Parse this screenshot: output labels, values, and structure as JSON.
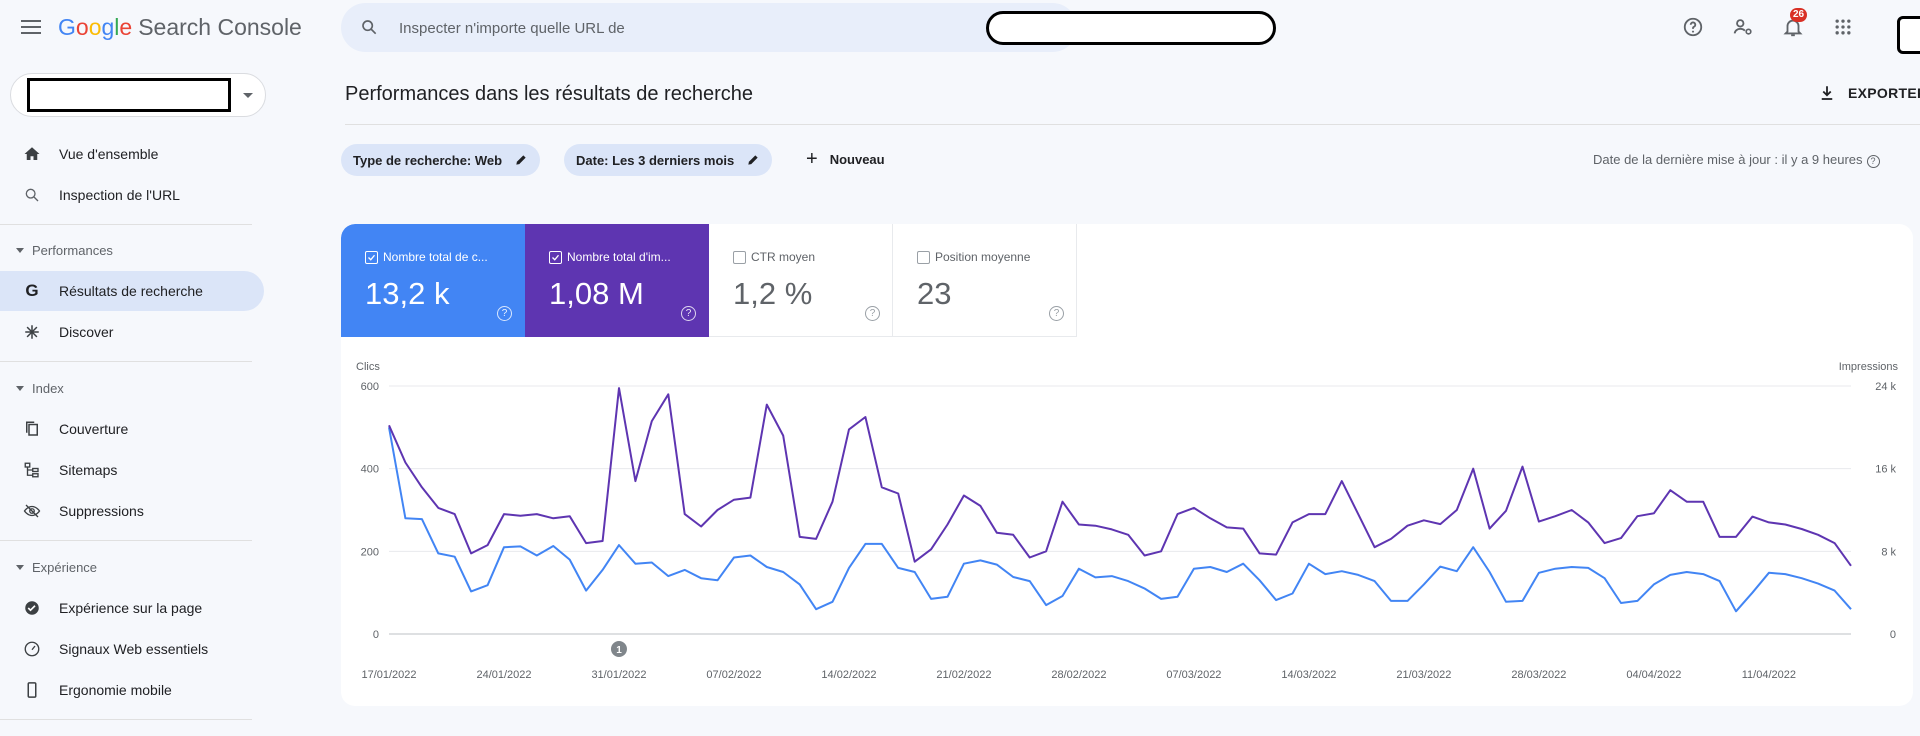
{
  "header": {
    "logo": {
      "g1": "G",
      "o1": "o",
      "o2": "o",
      "g2": "g",
      "l": "l",
      "e": "e",
      "product": "Search Console"
    },
    "search_placeholder": "Inspecter n'importe quelle URL de",
    "notifications_count": "26",
    "icons": [
      "menu-icon",
      "search-icon",
      "help-icon",
      "manage-users-icon",
      "notifications-icon",
      "apps-grid-icon"
    ]
  },
  "sidebar": {
    "top_items": [
      {
        "label": "Vue d'ensemble",
        "icon": "home-icon"
      },
      {
        "label": "Inspection de l'URL",
        "icon": "search-icon"
      }
    ],
    "sections": [
      {
        "title": "Performances",
        "items": [
          {
            "label": "Résultats de recherche",
            "icon": "google-g-icon",
            "active": true
          },
          {
            "label": "Discover",
            "icon": "discover-asterisk-icon"
          }
        ]
      },
      {
        "title": "Index",
        "items": [
          {
            "label": "Couverture",
            "icon": "coverage-copy-icon"
          },
          {
            "label": "Sitemaps",
            "icon": "sitemap-icon"
          },
          {
            "label": "Suppressions",
            "icon": "removals-eye-off-icon"
          }
        ]
      },
      {
        "title": "Expérience",
        "items": [
          {
            "label": "Expérience sur la page",
            "icon": "page-experience-icon"
          },
          {
            "label": "Signaux Web essentiels",
            "icon": "gauge-icon"
          },
          {
            "label": "Ergonomie mobile",
            "icon": "mobile-phone-icon"
          }
        ]
      }
    ]
  },
  "main": {
    "title": "Performances dans les résultats de recherche",
    "export_label": "EXPORTER",
    "filters": [
      {
        "label": "Type de recherche: Web"
      },
      {
        "label": "Date: Les 3 derniers mois"
      }
    ],
    "new_label": "Nouveau",
    "update_info": "Date de la dernière mise à jour : il y a 9 heures",
    "metrics": [
      {
        "label": "Nombre total de c...",
        "value": "13,2 k",
        "checked": true,
        "color": "#4285f4"
      },
      {
        "label": "Nombre total d'im...",
        "value": "1,08 M",
        "checked": true,
        "color": "#5e35b1"
      },
      {
        "label": "CTR moyen",
        "value": "1,2 %",
        "checked": false
      },
      {
        "label": "Position moyenne",
        "value": "23",
        "checked": false
      }
    ]
  },
  "chart_data": {
    "type": "line",
    "y_left_label": "Clics",
    "y_right_label": "Impressions",
    "y_left_ticks": [
      "0",
      "200",
      "400",
      "600"
    ],
    "y_right_ticks": [
      "0",
      "8 k",
      "16 k",
      "24 k"
    ],
    "ylim_left": [
      0,
      600
    ],
    "ylim_right": [
      0,
      24000
    ],
    "x_tick_labels": [
      "17/01/2022",
      "24/01/2022",
      "31/01/2022",
      "07/02/2022",
      "14/02/2022",
      "21/02/2022",
      "28/02/2022",
      "07/03/2022",
      "14/03/2022",
      "21/03/2022",
      "28/03/2022",
      "04/04/2022",
      "11/04/2022"
    ],
    "annotation": {
      "label": "1",
      "day_index": 14
    },
    "colors": {
      "clicks": "#4285f4",
      "impressions": "#5e35b1"
    },
    "series": [
      {
        "name": "Clics",
        "axis": "left",
        "values": [
          500,
          280,
          278,
          195,
          187,
          103,
          118,
          210,
          212,
          190,
          213,
          180,
          105,
          155,
          215,
          170,
          173,
          140,
          155,
          135,
          130,
          185,
          190,
          162,
          150,
          120,
          60,
          78,
          160,
          218,
          218,
          160,
          150,
          85,
          90,
          170,
          178,
          168,
          138,
          128,
          70,
          92,
          158,
          137,
          140,
          128,
          110,
          85,
          90,
          158,
          162,
          150,
          170,
          130,
          82,
          98,
          170,
          145,
          152,
          143,
          128,
          80,
          80,
          120,
          163,
          152,
          210,
          150,
          78,
          80,
          148,
          158,
          162,
          160,
          135,
          75,
          80,
          120,
          143,
          150,
          145,
          128,
          55,
          100,
          148,
          145,
          135,
          122,
          105,
          60
        ],
        "dates_first": "17/01/2022"
      },
      {
        "name": "Impressions",
        "axis": "left_scaled",
        "values": [
          505,
          415,
          355,
          305,
          290,
          195,
          215,
          290,
          286,
          290,
          280,
          285,
          220,
          225,
          595,
          370,
          515,
          580,
          290,
          260,
          300,
          325,
          330,
          555,
          480,
          235,
          230,
          320,
          495,
          525,
          355,
          340,
          175,
          205,
          265,
          335,
          310,
          245,
          240,
          185,
          200,
          320,
          265,
          262,
          253,
          240,
          190,
          200,
          290,
          305,
          280,
          258,
          255,
          195,
          192,
          270,
          290,
          290,
          370,
          290,
          210,
          230,
          262,
          275,
          266,
          300,
          400,
          255,
          298,
          405,
          272,
          285,
          300,
          270,
          220,
          232,
          285,
          292,
          348,
          320,
          320,
          235,
          235,
          284,
          270,
          265,
          254,
          240,
          220,
          165
        ]
      }
    ]
  }
}
